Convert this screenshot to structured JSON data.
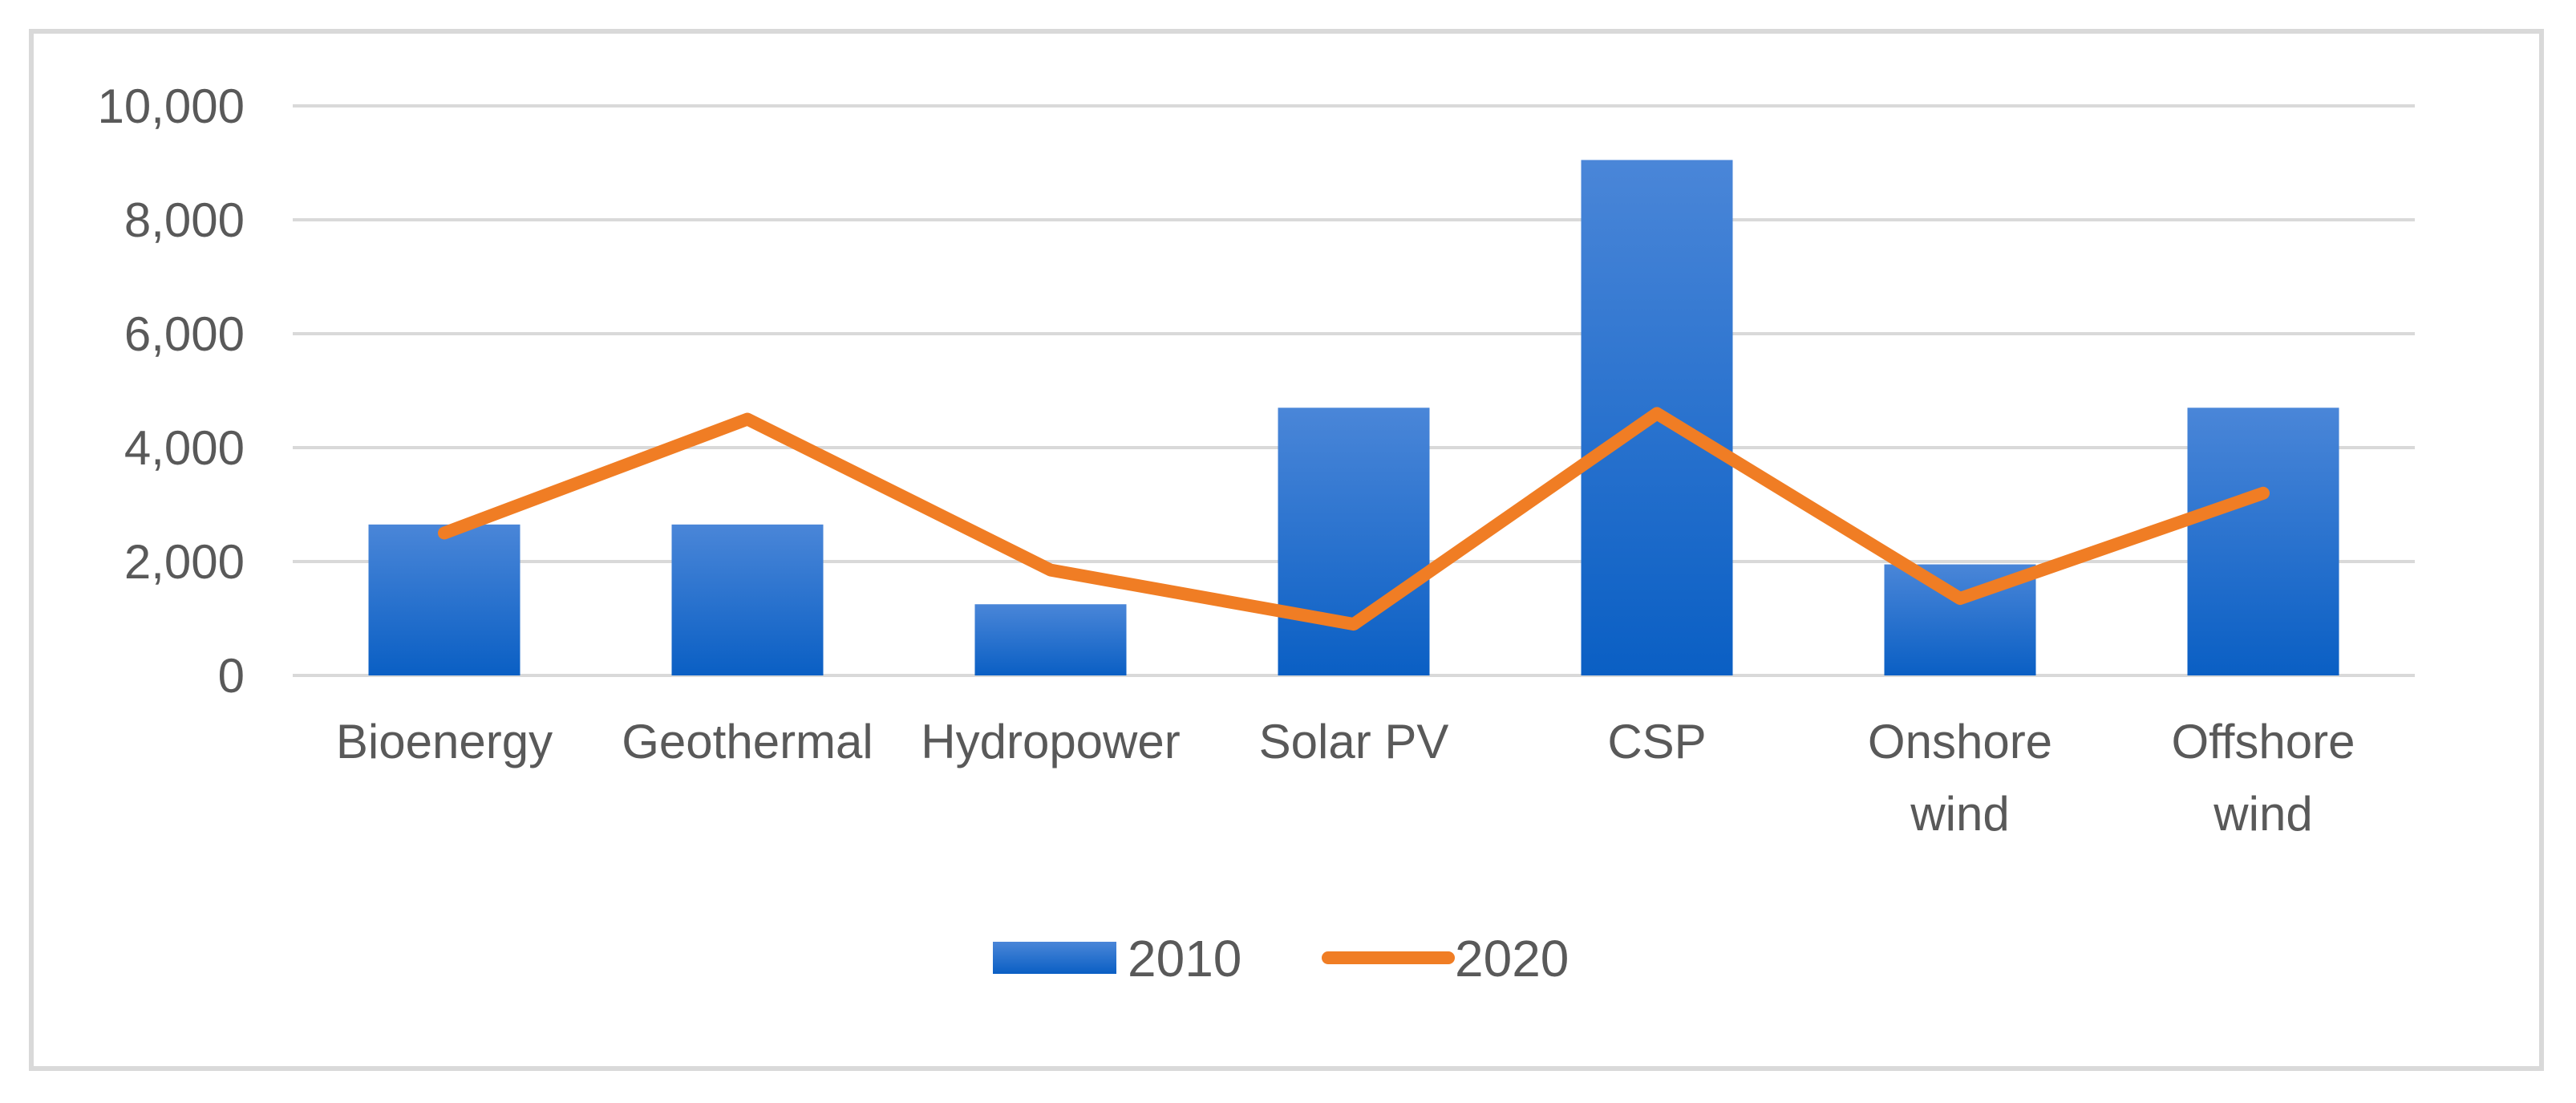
{
  "chart_data": {
    "type": "bar",
    "title": "",
    "xlabel": "",
    "ylabel": "",
    "categories": [
      "Bioenergy",
      "Geothermal",
      "Hydropower",
      "Solar PV",
      "CSP",
      "Onshore wind",
      "Offshore wind"
    ],
    "category_lines": [
      [
        "Bioenergy"
      ],
      [
        "Geothermal"
      ],
      [
        "Hydropower"
      ],
      [
        "Solar PV"
      ],
      [
        "CSP"
      ],
      [
        "Onshore",
        "wind"
      ],
      [
        "Offshore",
        "wind"
      ]
    ],
    "ylim": [
      0,
      10000
    ],
    "yticks": [
      0,
      2000,
      4000,
      6000,
      8000,
      10000
    ],
    "ytick_labels": [
      "0",
      "2,000",
      "4,000",
      "6,000",
      "8,000",
      "10,000"
    ],
    "grid": true,
    "legend_position": "bottom",
    "series": [
      {
        "name": "2010",
        "kind": "bar",
        "color": "#1f6fd1",
        "values": [
          2650,
          2650,
          1250,
          4700,
          9050,
          1950,
          4700
        ]
      },
      {
        "name": "2020",
        "kind": "line",
        "color": "#f07d24",
        "values": [
          2500,
          4500,
          1850,
          900,
          4600,
          1350,
          3200
        ]
      }
    ]
  }
}
